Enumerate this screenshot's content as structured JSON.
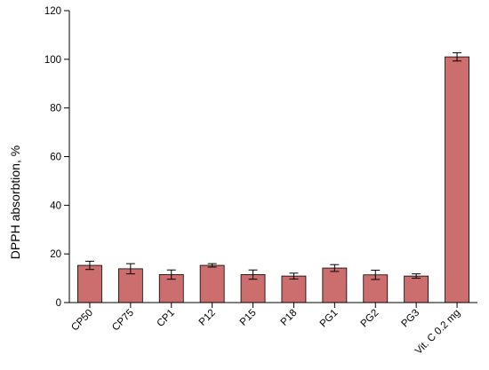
{
  "chart_data": {
    "type": "bar",
    "title": "",
    "xlabel": "",
    "ylabel": "DPPH absorbtion, %",
    "ylim": [
      0,
      120
    ],
    "yticks": [
      0,
      20,
      40,
      60,
      80,
      100,
      120
    ],
    "grid": false,
    "legend": "none",
    "bar_color": "#cc6e6e",
    "categories": [
      "CP50",
      "CP75",
      "CP1",
      "P12",
      "P15",
      "P18",
      "PG1",
      "PG2",
      "PG3",
      "Vit. C 0.2 mg"
    ],
    "series": [
      {
        "values": [
          15.3,
          13.9,
          11.5,
          15.3,
          11.5,
          10.9,
          14.2,
          11.4,
          10.9,
          101.0
        ],
        "errors": [
          1.7,
          2.1,
          1.9,
          0.7,
          1.9,
          1.2,
          1.4,
          1.9,
          0.9,
          1.7
        ]
      }
    ]
  }
}
